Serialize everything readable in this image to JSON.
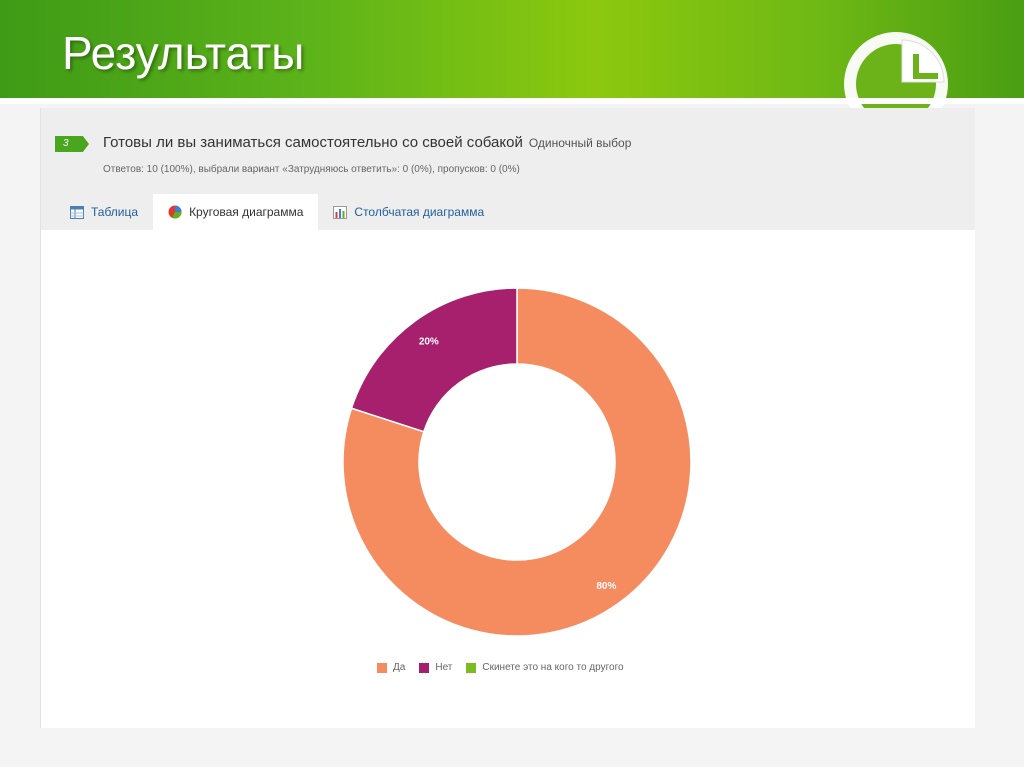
{
  "slide": {
    "title": "Результаты"
  },
  "question": {
    "number": "3",
    "title": "Готовы ли вы заниматься самостоятельно со своей собакой",
    "type": "Одиночный выбор",
    "stats": "Ответов: 10 (100%), выбрали вариант «Затрудняюсь ответить»: 0 (0%), пропусков: 0 (0%)"
  },
  "tabs": [
    {
      "label": "Таблица",
      "icon": "table-icon",
      "active": false
    },
    {
      "label": "Круговая диаграмма",
      "icon": "pie-chart-icon",
      "active": true
    },
    {
      "label": "Столбчатая диаграмма",
      "icon": "bar-chart-icon",
      "active": false
    }
  ],
  "chart_data": {
    "type": "pie",
    "variant": "donut",
    "title": "",
    "categories": [
      "Да",
      "Нет",
      "Скинете это на кого то другого"
    ],
    "values": [
      80,
      20,
      0
    ],
    "labels": [
      "80%",
      "20%",
      ""
    ],
    "colors": [
      "#f58c5f",
      "#a6206e",
      "#7cbc22"
    ],
    "legend": "bottom"
  },
  "colors": {
    "header_green": "#5cb31a",
    "badge_green": "#4aa61e",
    "tab_link": "#1f5f9e"
  }
}
